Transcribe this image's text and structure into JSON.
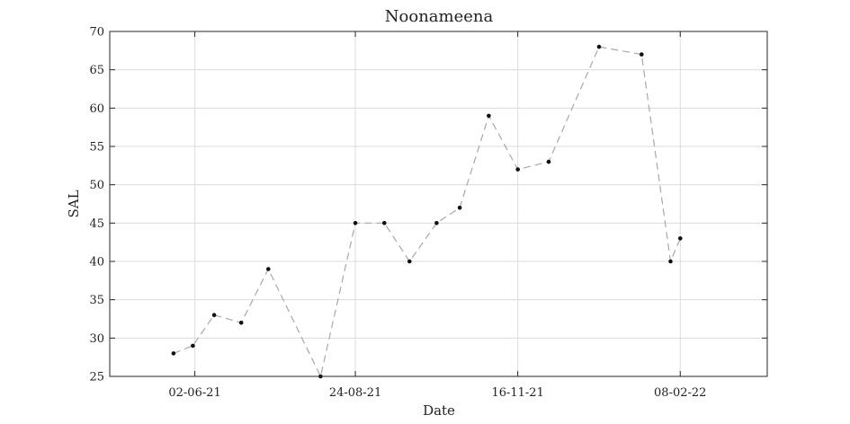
{
  "chart_data": {
    "type": "line",
    "title": "Noonameena",
    "xlabel": "Date",
    "ylabel": "SAL",
    "ylim": [
      25,
      70
    ],
    "yticks": [
      25,
      30,
      35,
      40,
      45,
      50,
      55,
      60,
      65,
      70
    ],
    "xlim": [
      "2021-04-19",
      "2022-03-25"
    ],
    "xticks": [
      {
        "date": "2021-06-02",
        "label": "02-06-21"
      },
      {
        "date": "2021-08-24",
        "label": "24-08-21"
      },
      {
        "date": "2021-11-16",
        "label": "16-11-21"
      },
      {
        "date": "2022-02-08",
        "label": "08-02-22"
      }
    ],
    "grid": true,
    "series": [
      {
        "line_color": "#a8a8a8",
        "marker_color": "#111111",
        "line_style": "dashed",
        "points": [
          {
            "date": "2021-05-22",
            "y": 28
          },
          {
            "date": "2021-06-01",
            "y": 29
          },
          {
            "date": "2021-06-12",
            "y": 33
          },
          {
            "date": "2021-06-26",
            "y": 32
          },
          {
            "date": "2021-07-10",
            "y": 39
          },
          {
            "date": "2021-08-06",
            "y": 25
          },
          {
            "date": "2021-08-24",
            "y": 45
          },
          {
            "date": "2021-09-08",
            "y": 45
          },
          {
            "date": "2021-09-21",
            "y": 40
          },
          {
            "date": "2021-10-05",
            "y": 45
          },
          {
            "date": "2021-10-17",
            "y": 47
          },
          {
            "date": "2021-11-01",
            "y": 59
          },
          {
            "date": "2021-11-16",
            "y": 52
          },
          {
            "date": "2021-11-32",
            "y": 53
          },
          {
            "date": "2021-12-28",
            "y": 68
          },
          {
            "date": "2022-01-19",
            "y": 67
          },
          {
            "date": "2022-02-03",
            "y": 40
          },
          {
            "date": "2022-02-08",
            "y": 43
          }
        ]
      }
    ]
  }
}
